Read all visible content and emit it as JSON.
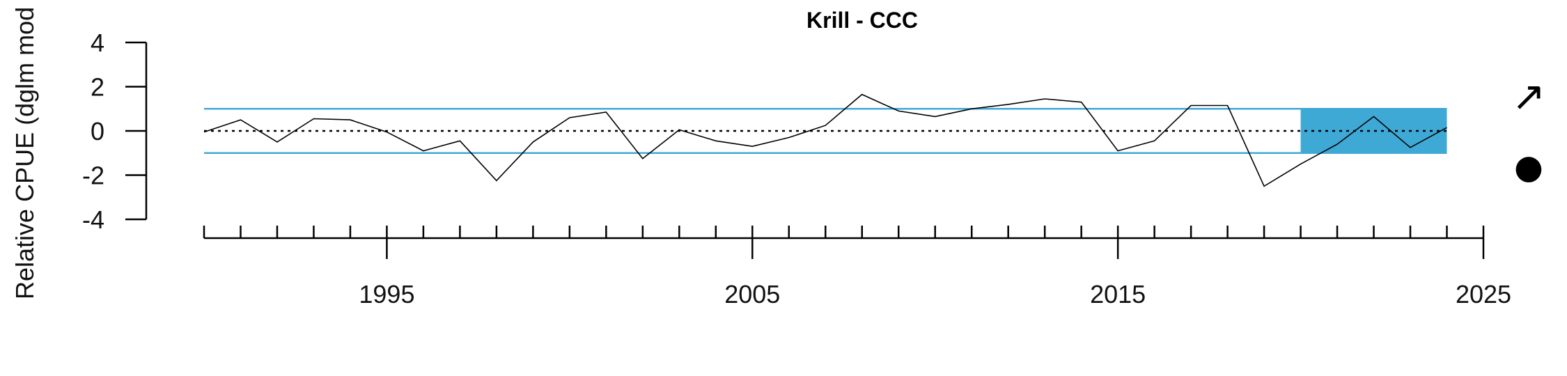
{
  "chart_data": {
    "type": "line",
    "title": "Krill - CCC",
    "ylabel": "Relative CPUE (dglm mod",
    "xlabel": "",
    "xlim": [
      1990,
      2025
    ],
    "ylim": [
      -4,
      4
    ],
    "x_major_ticks": [
      1995,
      2005,
      2015,
      2025
    ],
    "x_minor_ticks": [
      1990,
      1991,
      1992,
      1993,
      1994,
      1995,
      1996,
      1997,
      1998,
      1999,
      2000,
      2001,
      2002,
      2003,
      2004,
      2005,
      2006,
      2007,
      2008,
      2009,
      2010,
      2011,
      2012,
      2013,
      2014,
      2015,
      2016,
      2017,
      2018,
      2019,
      2020,
      2021,
      2022,
      2023,
      2024,
      2025
    ],
    "y_ticks": [
      -4,
      -2,
      0,
      2,
      4
    ],
    "reference_lines": {
      "mean": 0,
      "upper": 1,
      "lower": -1
    },
    "highlight_period": {
      "from": 2020,
      "to": 2024,
      "ymin": -1,
      "ymax": 1
    },
    "colors": {
      "band": "#3fa9d6",
      "line": "#000000",
      "mean_line": "#000000",
      "axis": "#000000"
    },
    "series": [
      {
        "x": [
          1990,
          1991,
          1992,
          1993,
          1994,
          1995,
          1996,
          1997,
          1998,
          1999,
          2000,
          2001,
          2002,
          2003,
          2004,
          2005,
          2006,
          2007,
          2008,
          2009,
          2010,
          2011,
          2012,
          2013,
          2014,
          2015,
          2016,
          2017,
          2018,
          2019,
          2020,
          2021,
          2022,
          2023,
          2024
        ],
        "values": [
          -0.05,
          0.5,
          -0.5,
          0.55,
          0.5,
          -0.05,
          -0.9,
          -0.45,
          -2.25,
          -0.5,
          0.6,
          0.85,
          -1.25,
          0.05,
          -0.45,
          -0.7,
          -0.3,
          0.25,
          1.65,
          0.9,
          0.65,
          1.0,
          1.2,
          1.45,
          1.3,
          -0.9,
          -0.45,
          1.15,
          1.15,
          -2.5,
          -1.5,
          -0.6,
          0.65,
          -0.75,
          0.15
        ]
      }
    ],
    "indicators": {
      "trend_symbol": "↗",
      "status_symbol": "●"
    }
  }
}
